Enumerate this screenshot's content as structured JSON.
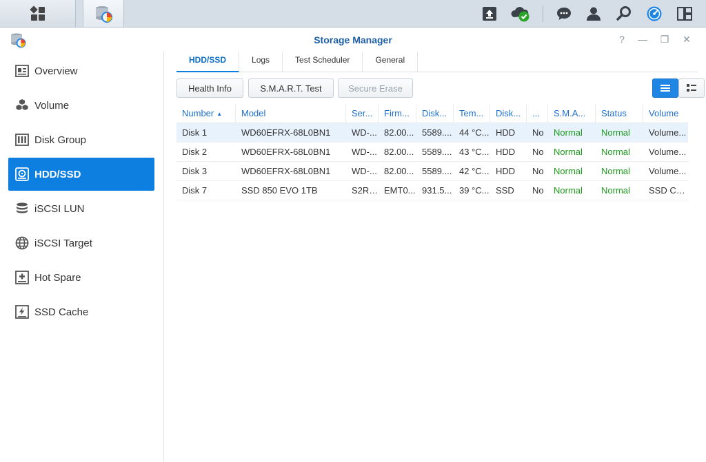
{
  "window": {
    "title": "Storage Manager"
  },
  "taskbar": {
    "icons": [
      "grid-icon",
      "storage-manager-icon",
      "upload-icon",
      "cloud-check-icon",
      "chat-icon",
      "user-icon",
      "search-icon",
      "dashboard-icon",
      "widgets-icon"
    ]
  },
  "window_controls": {
    "help": "?",
    "minimize": "—",
    "restore": "❐",
    "close": "✕"
  },
  "sidebar": {
    "items": [
      {
        "label": "Overview",
        "icon": "overview-icon"
      },
      {
        "label": "Volume",
        "icon": "volume-icon"
      },
      {
        "label": "Disk Group",
        "icon": "disk-group-icon"
      },
      {
        "label": "HDD/SSD",
        "icon": "hdd-icon"
      },
      {
        "label": "iSCSI LUN",
        "icon": "database-icon"
      },
      {
        "label": "iSCSI Target",
        "icon": "globe-icon"
      },
      {
        "label": "Hot Spare",
        "icon": "plus-box-icon"
      },
      {
        "label": "SSD Cache",
        "icon": "lightning-icon"
      }
    ],
    "active_index": 3
  },
  "tabs": [
    "HDD/SSD",
    "Logs",
    "Test Scheduler",
    "General"
  ],
  "toolbar": {
    "health_info": "Health Info",
    "smart_test": "S.M.A.R.T. Test",
    "secure_erase": "Secure Erase"
  },
  "table": {
    "columns": [
      "Number",
      "Model",
      "Ser...",
      "Firm...",
      "Disk...",
      "Tem...",
      "Disk...",
      "...",
      "S.M.A...",
      "Status",
      "Volume"
    ],
    "rows": [
      [
        "Disk 1",
        "WD60EFRX-68L0BN1",
        "WD-...",
        "82.00...",
        "5589....",
        "44 °C...",
        "HDD",
        "No",
        "Normal",
        "Normal",
        "Volume..."
      ],
      [
        "Disk 2",
        "WD60EFRX-68L0BN1",
        "WD-...",
        "82.00...",
        "5589....",
        "43 °C...",
        "HDD",
        "No",
        "Normal",
        "Normal",
        "Volume..."
      ],
      [
        "Disk 3",
        "WD60EFRX-68L0BN1",
        "WD-...",
        "82.00...",
        "5589....",
        "42 °C...",
        "HDD",
        "No",
        "Normal",
        "Normal",
        "Volume..."
      ],
      [
        "Disk 7",
        "SSD 850 EVO 1TB",
        "S2RF...",
        "EMT0...",
        "931.5...",
        "39 °C...",
        "SSD",
        "No",
        "Normal",
        "Normal",
        "SSD Ca..."
      ]
    ],
    "selected_row": 0
  },
  "colors": {
    "accent": "#0d7fe0",
    "status_ok": "#1d9b1d",
    "header_text": "#1d6fca"
  }
}
